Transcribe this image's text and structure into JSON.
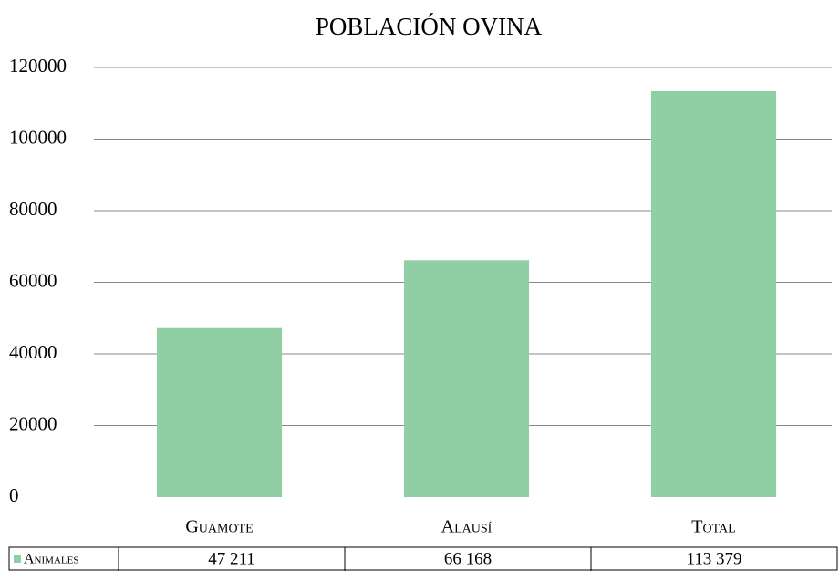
{
  "chart_data": {
    "type": "bar",
    "title": "POBLACIÓN OVINA",
    "categories": [
      "Guamote",
      "Alausí",
      "Total"
    ],
    "series": [
      {
        "name": "Animales",
        "color": "#8fcfa3",
        "values": [
          47211,
          66168,
          113379
        ],
        "value_labels": [
          "47 211",
          "66 168",
          "113 379"
        ]
      }
    ],
    "ylim": [
      0,
      120000
    ],
    "yticks": [
      0,
      20000,
      40000,
      60000,
      80000,
      100000,
      120000
    ],
    "grid": true
  }
}
